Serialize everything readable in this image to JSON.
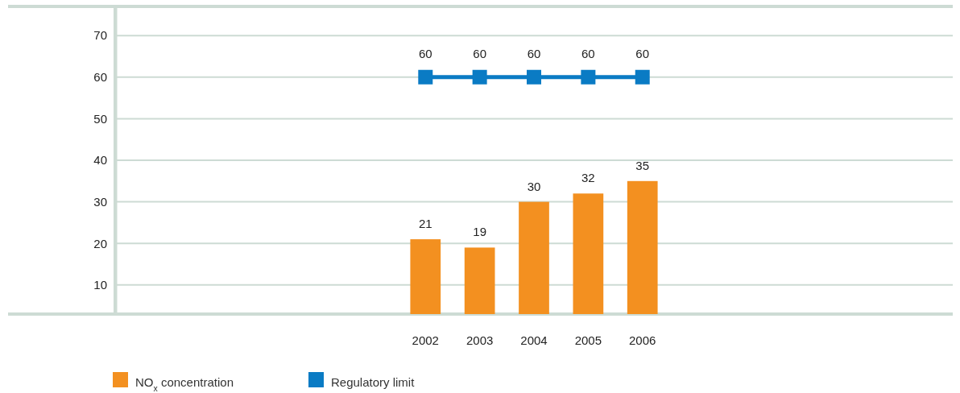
{
  "chart_data": {
    "type": "bar",
    "categories": [
      null,
      null,
      null,
      null,
      null,
      "2002",
      "2003",
      "2004",
      "2005",
      "2006",
      null,
      null,
      null,
      null,
      null
    ],
    "series": [
      {
        "name": "NO$_{x}$ concentration",
        "color": "#f39020",
        "values": [
          null,
          null,
          null,
          null,
          null,
          21,
          19,
          30,
          32,
          35,
          null,
          null,
          null,
          null,
          null
        ]
      },
      {
        "name": "Regulatory limit",
        "type": "line",
        "color": "#0a7bc4",
        "marker": "square",
        "values": [
          null,
          null,
          null,
          null,
          null,
          60,
          60,
          60,
          60,
          60,
          null,
          null,
          null,
          null,
          null
        ]
      }
    ],
    "ylim": [
      3,
      77
    ],
    "yticks": [
      10,
      20,
      30,
      40,
      50,
      60,
      70
    ],
    "grid": "y",
    "data_labels": true,
    "legend": "bottom left"
  }
}
